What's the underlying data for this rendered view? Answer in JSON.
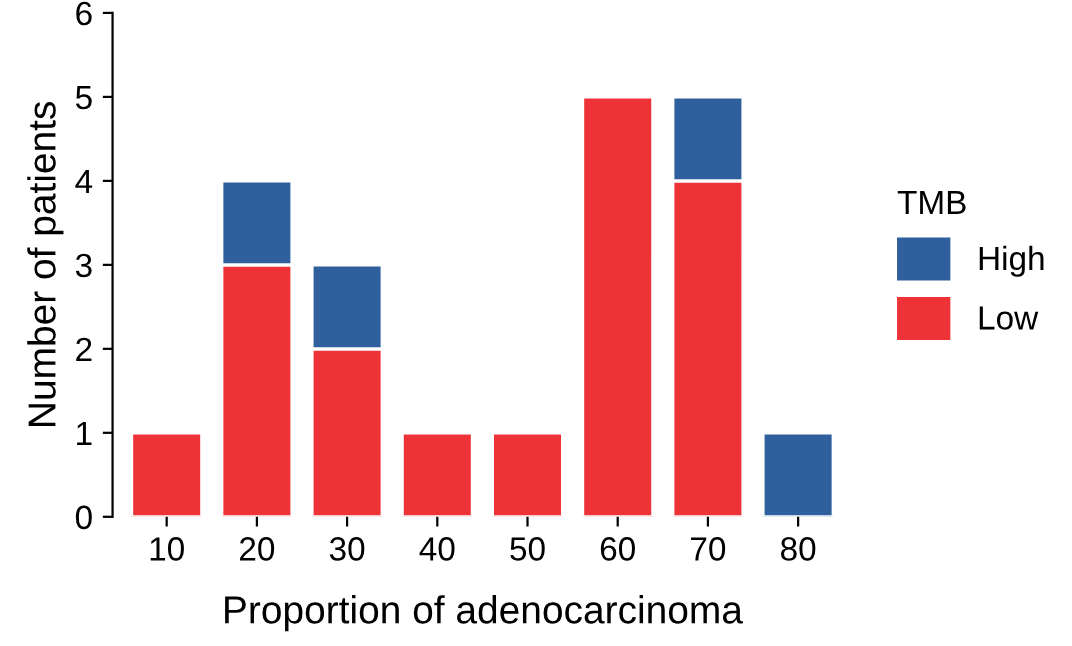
{
  "chart_data": {
    "type": "bar",
    "stacked": true,
    "xlabel": "Proportion of adenocarcinoma",
    "ylabel": "Number of patients",
    "legend_title": "TMB",
    "legend": "right",
    "categories": [
      "10",
      "20",
      "30",
      "40",
      "50",
      "60",
      "70",
      "80"
    ],
    "series": [
      {
        "name": "Low",
        "color": "#ee3338",
        "values": [
          1,
          3,
          2,
          1,
          1,
          5,
          4,
          null
        ]
      },
      {
        "name": "High",
        "color": "#2f5f9c",
        "values": [
          null,
          1,
          1,
          null,
          null,
          null,
          1,
          1
        ]
      }
    ],
    "ylim": [
      0,
      6
    ],
    "yticks": [
      0,
      1,
      2,
      3,
      4,
      5,
      6
    ],
    "grid": false
  }
}
